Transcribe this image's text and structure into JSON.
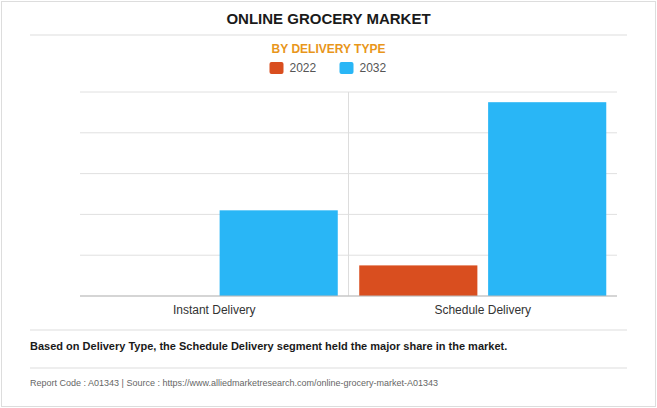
{
  "chart_data": {
    "type": "bar",
    "title": "ONLINE GROCERY MARKET",
    "subtitle": "BY DELIVERY TYPE",
    "categories": [
      "Instant Delivery",
      "Schedule Delivery"
    ],
    "series": [
      {
        "name": "2022",
        "color": "#D94E1F",
        "values": [
          0,
          15
        ]
      },
      {
        "name": "2032",
        "color": "#29B6F6",
        "values": [
          42,
          95
        ]
      }
    ],
    "ylim": [
      0,
      100
    ],
    "yticks": [
      0,
      20,
      40,
      60,
      80,
      100
    ],
    "grid": true,
    "tick_labels": "x",
    "legend": "top",
    "annotations": [
      "Based on Delivery Type, the Schedule Delivery segment held the major share in the market.",
      "Report Code : A01343  |  Source : https://www.alliedmarketresearch.com/online-grocery-market-A01343"
    ]
  }
}
